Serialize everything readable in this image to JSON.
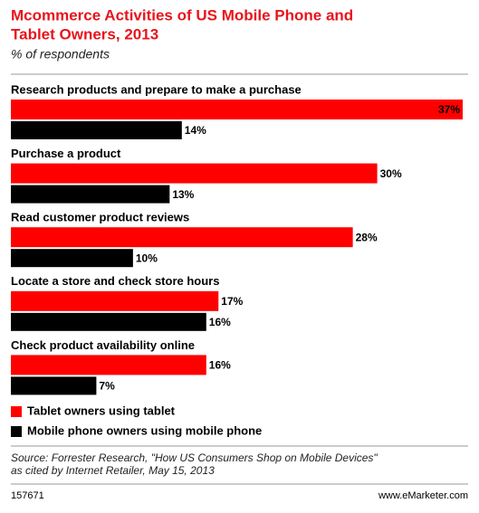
{
  "chart_data": {
    "type": "bar",
    "orientation": "horizontal",
    "title": [
      "Mcommerce Activities of US Mobile Phone and",
      "Tablet Owners, 2013"
    ],
    "subtitle": "% of respondents",
    "categories": [
      "Research products and prepare to make a purchase",
      "Purchase a product",
      "Read customer product reviews",
      "Locate a store and check store hours",
      "Check product availability online"
    ],
    "series": [
      {
        "name": "Tablet owners using tablet",
        "color": "#ff0000",
        "values": [
          37,
          30,
          28,
          17,
          16
        ],
        "value_labels": [
          "37%",
          "30%",
          "28%",
          "17%",
          "16%"
        ]
      },
      {
        "name": "Mobile phone owners using mobile phone",
        "color": "#000000",
        "values": [
          14,
          13,
          10,
          16,
          7
        ],
        "value_labels": [
          "14%",
          "13%",
          "10%",
          "16%",
          "7%"
        ]
      }
    ],
    "source": [
      "Source: Forrester Research, \"How US Consumers Shop on Mobile Devices\"",
      "as cited by Internet Retailer, May 15, 2013"
    ],
    "chart_id": "157671",
    "website": "www.eMarketer.com"
  }
}
